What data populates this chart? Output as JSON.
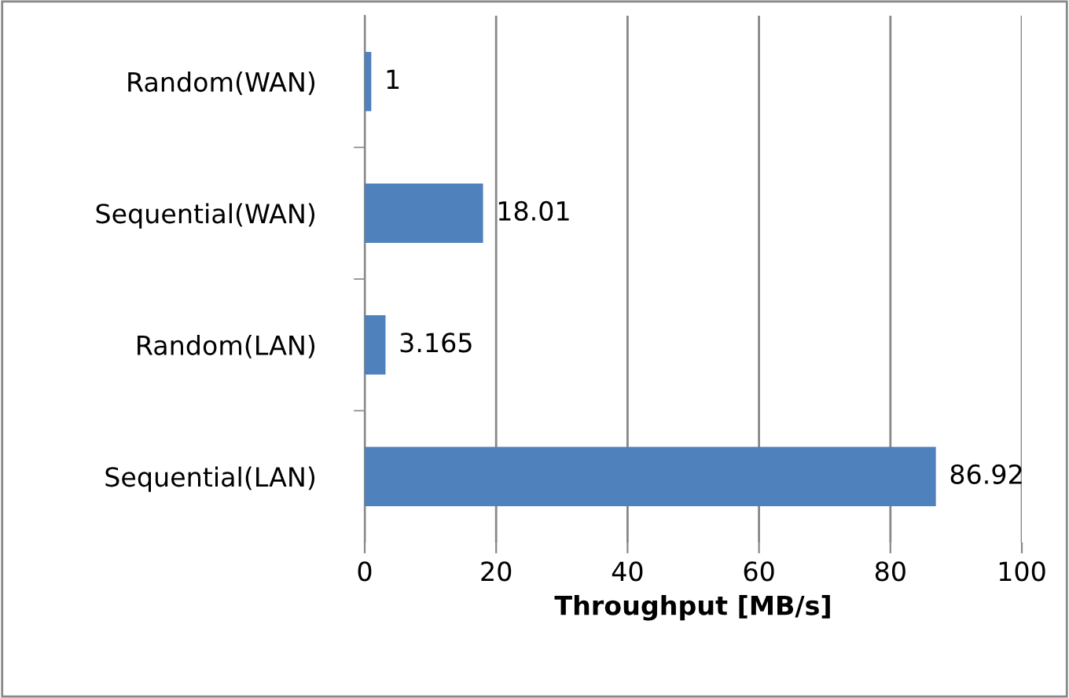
{
  "chart_data": {
    "type": "bar",
    "orientation": "horizontal",
    "xlabel": "Throughput [MB/s]",
    "categories": [
      "Random(WAN)",
      "Sequential(WAN)",
      "Random(LAN)",
      "Sequential(LAN)"
    ],
    "values": [
      1,
      18.01,
      3.165,
      86.92
    ],
    "color": "#4f81bd",
    "xlim": [
      0,
      100
    ],
    "xticks": [
      0,
      20,
      40,
      60,
      80,
      100
    ],
    "grid": "x",
    "data_labels": true,
    "legend": false
  }
}
